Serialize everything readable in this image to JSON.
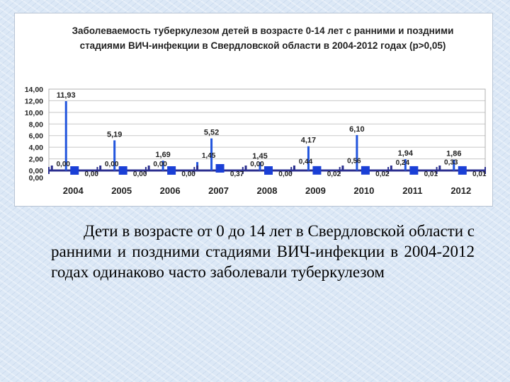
{
  "chart_data": {
    "type": "line",
    "title": "Заболеваемость туберкулезом детей в возрасте 0-14 лет с ранними и поздними стадиями ВИЧ-инфекции в Свердловской области в 2004-2012 годах (p>0,05)",
    "categories": [
      "2004",
      "2005",
      "2006",
      "2007",
      "2008",
      "2009",
      "2010",
      "2011",
      "2012"
    ],
    "series": [
      {
        "values": [
          11.93,
          5.19,
          1.69,
          5.52,
          1.45,
          4.17,
          6.1,
          1.94,
          1.86
        ]
      },
      {
        "values": [
          0.0,
          0.0,
          0.0,
          1.45,
          0.0,
          0.44,
          0.56,
          0.24,
          0.33
        ]
      },
      {
        "values": [
          0.0,
          0.0,
          0.0,
          0.37,
          0.0,
          0.02,
          0.02,
          0.01,
          0.01
        ]
      }
    ],
    "ylim": [
      0,
      14
    ],
    "yticks": [
      "14,00",
      "12,00",
      "10,00",
      "8,00",
      "6,00",
      "4,00",
      "2,00",
      "0,00",
      "0,00"
    ],
    "point_labels": [
      [
        "11,93",
        "0,00",
        "0,00"
      ],
      [
        "5,19",
        "0,00",
        "0,00"
      ],
      [
        "1,69",
        "0,00",
        "0,00"
      ],
      [
        "5,52",
        "1,45",
        "0,37"
      ],
      [
        "1,45",
        "0,00",
        "0,00"
      ],
      [
        "4,17",
        "0,44",
        "0,02"
      ],
      [
        "6,10",
        "0,56",
        "0,02"
      ],
      [
        "1,94",
        "0,24",
        "0,01"
      ],
      [
        "1,86",
        "0,33",
        "0,01"
      ]
    ],
    "colors": {
      "bars": "#2255dd",
      "markers": "#1a3fd6",
      "baseline": "#2b2f8f",
      "grid": "#c8c8c8",
      "labels": "#222222"
    },
    "grid": true
  },
  "body": {
    "text": "Дети в возрасте от 0 до 14 лет в Свердловской области с ранними и поздними стадиями ВИЧ-инфекции в 2004-2012 годах одинаково часто заболевали туберкулезом"
  }
}
